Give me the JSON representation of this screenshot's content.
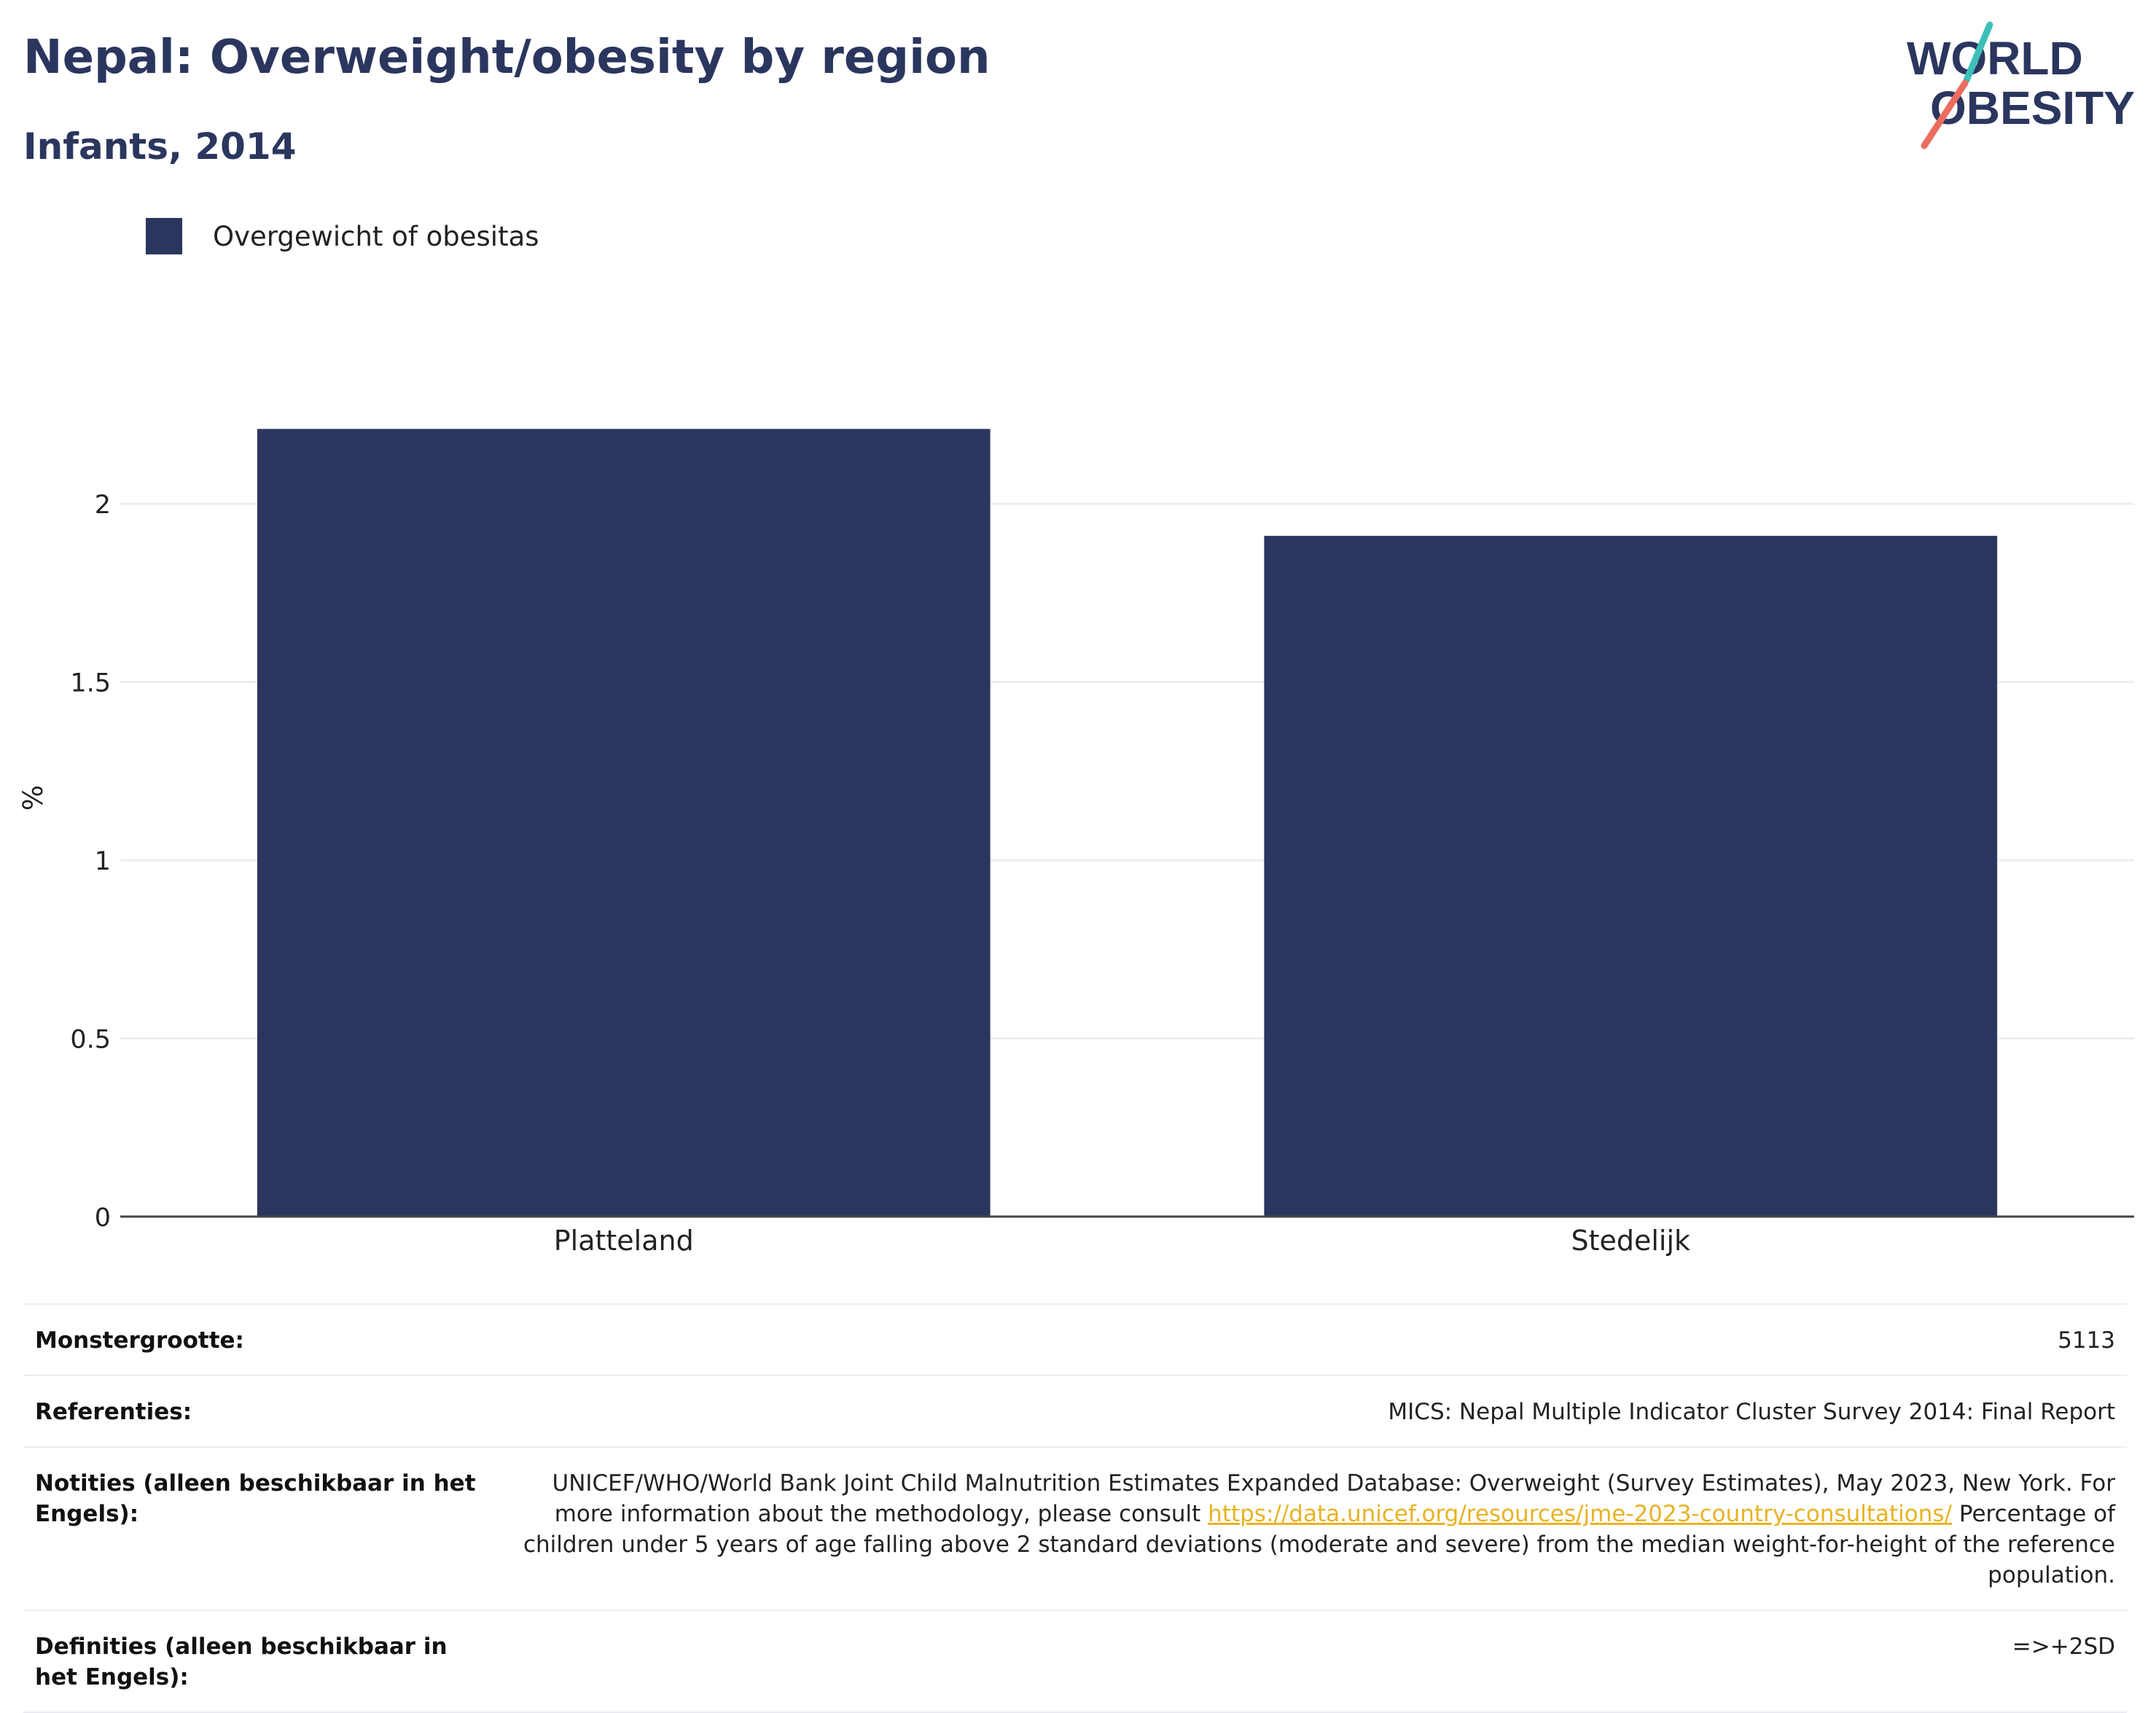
{
  "header": {
    "title": "Nepal: Overweight/obesity by region",
    "subtitle": "Infants, 2014"
  },
  "logo": {
    "line1": "WORLD",
    "line2": "OBESITY",
    "colors": {
      "text": "#2b365f",
      "slash_top": "#3dbfb7",
      "slash_bottom": "#ec6d5d"
    }
  },
  "legend": {
    "label": "Overgewicht of obesitas",
    "color": "#2b365f"
  },
  "chart_data": {
    "type": "bar",
    "categories": [
      "Platteland",
      "Stedelijk"
    ],
    "series": [
      {
        "name": "Overgewicht of obesitas",
        "values": [
          2.21,
          1.91
        ],
        "color": "#2b365f"
      }
    ],
    "ylabel": "%",
    "ylim": [
      0,
      2.35
    ],
    "yticks": [
      0,
      0.5,
      1,
      1.5,
      2
    ],
    "ytick_labels": [
      "0",
      "0.5",
      "1",
      "1.5",
      "2"
    ],
    "grid": true,
    "legend_position": "top-left"
  },
  "meta": [
    {
      "key": "Monstergrootte:",
      "value": "5113"
    },
    {
      "key": "Referenties:",
      "value": "MICS: Nepal Multiple Indicator Cluster Survey 2014: Final Report"
    },
    {
      "key": "Notities (alleen beschikbaar in het Engels):",
      "value_pre": "UNICEF/WHO/World Bank Joint Child Malnutrition Estimates Expanded Database: Overweight (Survey Estimates), May 2023, New York. For more information about the methodology, please consult ",
      "link": "https://data.unicef.org/resources/jme-2023-country-consultations/",
      "value_post": " Percentage of children under 5 years of age falling above 2 standard deviations (moderate and severe) from the median weight-for-height of the reference population."
    },
    {
      "key": "Definities (alleen beschikbaar in het Engels):",
      "value": "=>+2SD"
    }
  ]
}
